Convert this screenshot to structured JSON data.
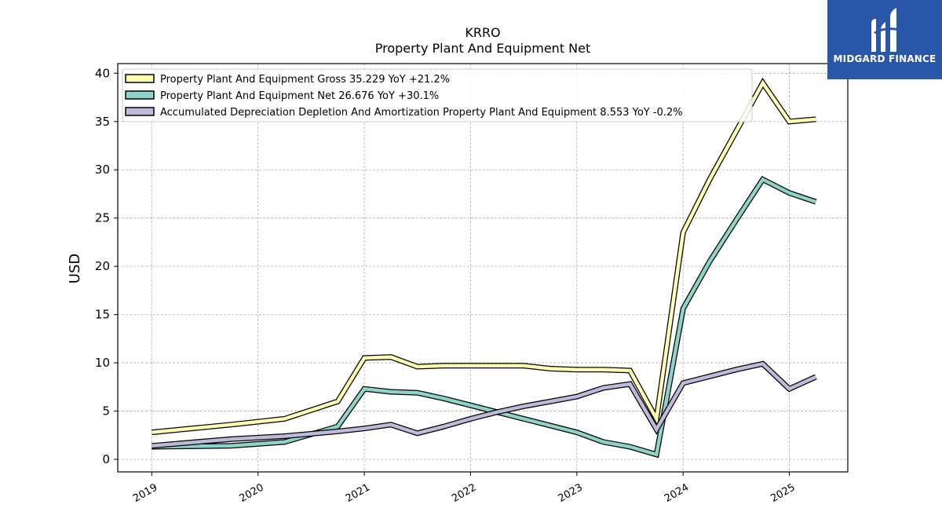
{
  "brand": {
    "name": "MIDGARD FINANCE",
    "bg_color": "#2a57a8"
  },
  "chart_data": {
    "type": "line",
    "title": "KRRO",
    "subtitle": "Property Plant And Equipment Net",
    "ylabel": "USD",
    "xlabel": "",
    "ylim": [
      -1.3,
      41
    ],
    "xlim": [
      2018.68,
      2025.55
    ],
    "yticks": [
      0,
      5,
      10,
      15,
      20,
      25,
      30,
      35,
      40
    ],
    "xticks": [
      2019,
      2020,
      2021,
      2022,
      2023,
      2024,
      2025
    ],
    "xtick_labels": [
      "2019",
      "2020",
      "2021",
      "2022",
      "2023",
      "2024",
      "2025"
    ],
    "grid": true,
    "legend_position": "top-left",
    "series": [
      {
        "name": "Property Plant And Equipment Gross",
        "legend_label": "Property Plant And Equipment Gross  35.229 YoY +21.2%",
        "color": "#ffffb3",
        "x": [
          2019.0,
          2019.75,
          2020.25,
          2020.75,
          2021.0,
          2021.25,
          2021.5,
          2021.75,
          2022.0,
          2022.25,
          2022.5,
          2022.75,
          2023.0,
          2023.25,
          2023.5,
          2023.75,
          2024.0,
          2024.25,
          2024.5,
          2024.75,
          2025.0,
          2025.25
        ],
        "y": [
          2.8,
          3.6,
          4.2,
          6.0,
          10.5,
          10.6,
          9.6,
          9.7,
          9.7,
          9.7,
          9.7,
          9.4,
          9.3,
          9.3,
          9.2,
          4.2,
          23.5,
          29.0,
          34.0,
          39.0,
          35.0,
          35.229
        ]
      },
      {
        "name": "Property Plant And Equipment Net",
        "legend_label": "Property Plant And Equipment Net  26.676 YoY +30.1%",
        "color": "#8dd3c7",
        "x": [
          2019.0,
          2019.75,
          2020.25,
          2020.75,
          2021.0,
          2021.25,
          2021.5,
          2021.75,
          2022.0,
          2022.25,
          2022.5,
          2022.75,
          2023.0,
          2023.25,
          2023.5,
          2023.75,
          2024.0,
          2024.25,
          2024.5,
          2024.75,
          2025.0,
          2025.25
        ],
        "y": [
          1.3,
          1.4,
          1.8,
          3.4,
          7.3,
          7.0,
          6.9,
          6.3,
          5.6,
          4.9,
          4.2,
          3.5,
          2.8,
          1.8,
          1.3,
          0.5,
          15.6,
          20.5,
          24.8,
          29.0,
          27.6,
          26.676
        ]
      },
      {
        "name": "Accumulated Depreciation Depletion And Amortization Property Plant And Equipment",
        "legend_label": "Accumulated Depreciation Depletion And Amortization Property Plant And Equipment  8.553 YoY -0.2%",
        "color": "#bebada",
        "x": [
          2019.0,
          2019.75,
          2020.25,
          2020.75,
          2021.0,
          2021.25,
          2021.5,
          2021.75,
          2022.0,
          2022.25,
          2022.5,
          2022.75,
          2023.0,
          2023.25,
          2023.5,
          2023.75,
          2024.0,
          2024.25,
          2024.5,
          2024.75,
          2025.0,
          2025.25
        ],
        "y": [
          1.4,
          2.1,
          2.4,
          2.9,
          3.2,
          3.6,
          2.7,
          3.4,
          4.2,
          4.9,
          5.5,
          6.0,
          6.5,
          7.4,
          7.8,
          3.1,
          7.9,
          8.6,
          9.3,
          9.9,
          7.3,
          8.553
        ]
      }
    ]
  }
}
